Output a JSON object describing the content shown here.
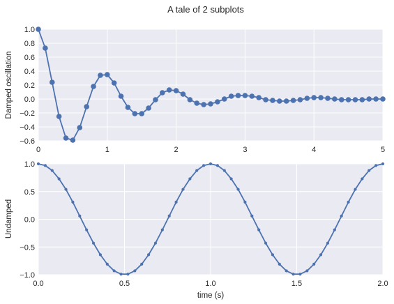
{
  "figure": {
    "title": "A tale of 2 subplots"
  },
  "chart_data": [
    {
      "type": "line",
      "title": "",
      "xlabel": "",
      "ylabel": "Damped oscillation",
      "xlim": [
        0,
        5
      ],
      "ylim": [
        -0.6,
        1.0
      ],
      "xticks": [
        "0",
        "1",
        "2",
        "3",
        "4",
        "5"
      ],
      "xtick_values": [
        0,
        1,
        2,
        3,
        4,
        5
      ],
      "yticks": [
        "−0.6",
        "−0.4",
        "−0.2",
        "0.0",
        "0.2",
        "0.4",
        "0.6",
        "0.8",
        "1.0"
      ],
      "ytick_values": [
        -0.6,
        -0.4,
        -0.2,
        0.0,
        0.2,
        0.4,
        0.6,
        0.8,
        1.0
      ],
      "grid": true,
      "marker": "circle",
      "color": "#4c72b0",
      "series": [
        {
          "x": [
            0.0,
            0.1,
            0.2,
            0.3,
            0.4,
            0.5,
            0.6,
            0.7,
            0.8,
            0.9,
            1.0,
            1.1,
            1.2,
            1.3,
            1.4,
            1.5,
            1.6,
            1.7,
            1.8,
            1.9,
            2.0,
            2.1,
            2.2,
            2.3,
            2.4,
            2.5,
            2.6,
            2.7,
            2.8,
            2.9,
            3.0,
            3.1,
            3.2,
            3.3,
            3.4,
            3.5,
            3.6,
            3.7,
            3.8,
            3.9,
            4.0,
            4.1,
            4.2,
            4.3,
            4.4,
            4.5,
            4.6,
            4.7,
            4.8,
            4.9,
            5.0
          ],
          "y": [
            1.0,
            0.73,
            0.24,
            -0.25,
            -0.56,
            -0.59,
            -0.41,
            -0.11,
            0.18,
            0.34,
            0.35,
            0.23,
            0.04,
            -0.12,
            -0.21,
            -0.21,
            -0.13,
            -0.01,
            0.09,
            0.13,
            0.12,
            0.07,
            -0.01,
            -0.06,
            -0.08,
            -0.07,
            -0.04,
            0.0,
            0.04,
            0.05,
            0.05,
            0.04,
            0.02,
            -0.01,
            -0.02,
            -0.03,
            -0.03,
            -0.02,
            -0.01,
            0.01,
            0.02,
            0.02,
            0.01,
            0.0,
            -0.01,
            -0.01,
            -0.01,
            -0.01,
            0.0,
            0.0,
            0.0
          ]
        }
      ]
    },
    {
      "type": "line",
      "title": "",
      "xlabel": "time (s)",
      "ylabel": "Undamped",
      "xlim": [
        0,
        2
      ],
      "ylim": [
        -1.0,
        1.0
      ],
      "xticks": [
        "0.0",
        "0.5",
        "1.0",
        "1.5",
        "2.0"
      ],
      "xtick_values": [
        0.0,
        0.5,
        1.0,
        1.5,
        2.0
      ],
      "yticks": [
        "−1.0",
        "−0.5",
        "0.0",
        "0.5",
        "1.0"
      ],
      "ytick_values": [
        -1.0,
        -0.5,
        0.0,
        0.5,
        1.0
      ],
      "grid": true,
      "marker": "point",
      "color": "#4c72b0",
      "series": [
        {
          "x": [
            0.0,
            0.04,
            0.08,
            0.12,
            0.16,
            0.2,
            0.24,
            0.28,
            0.32,
            0.36,
            0.4,
            0.44,
            0.48,
            0.52,
            0.56,
            0.6,
            0.64,
            0.68,
            0.72,
            0.76,
            0.8,
            0.84,
            0.88,
            0.92,
            0.96,
            1.0,
            1.04,
            1.08,
            1.12,
            1.16,
            1.2,
            1.24,
            1.28,
            1.32,
            1.36,
            1.4,
            1.44,
            1.48,
            1.52,
            1.56,
            1.6,
            1.64,
            1.68,
            1.72,
            1.76,
            1.8,
            1.84,
            1.88,
            1.92,
            1.96,
            2.0
          ],
          "y": [
            1.0,
            0.97,
            0.88,
            0.73,
            0.54,
            0.31,
            0.06,
            -0.19,
            -0.43,
            -0.64,
            -0.81,
            -0.93,
            -0.99,
            -0.99,
            -0.93,
            -0.81,
            -0.64,
            -0.43,
            -0.19,
            0.06,
            0.31,
            0.54,
            0.73,
            0.88,
            0.97,
            1.0,
            0.97,
            0.88,
            0.73,
            0.54,
            0.31,
            0.06,
            -0.19,
            -0.43,
            -0.64,
            -0.81,
            -0.93,
            -0.99,
            -0.99,
            -0.93,
            -0.81,
            -0.64,
            -0.43,
            -0.19,
            0.06,
            0.31,
            0.54,
            0.73,
            0.88,
            0.97,
            1.0
          ]
        }
      ]
    }
  ]
}
